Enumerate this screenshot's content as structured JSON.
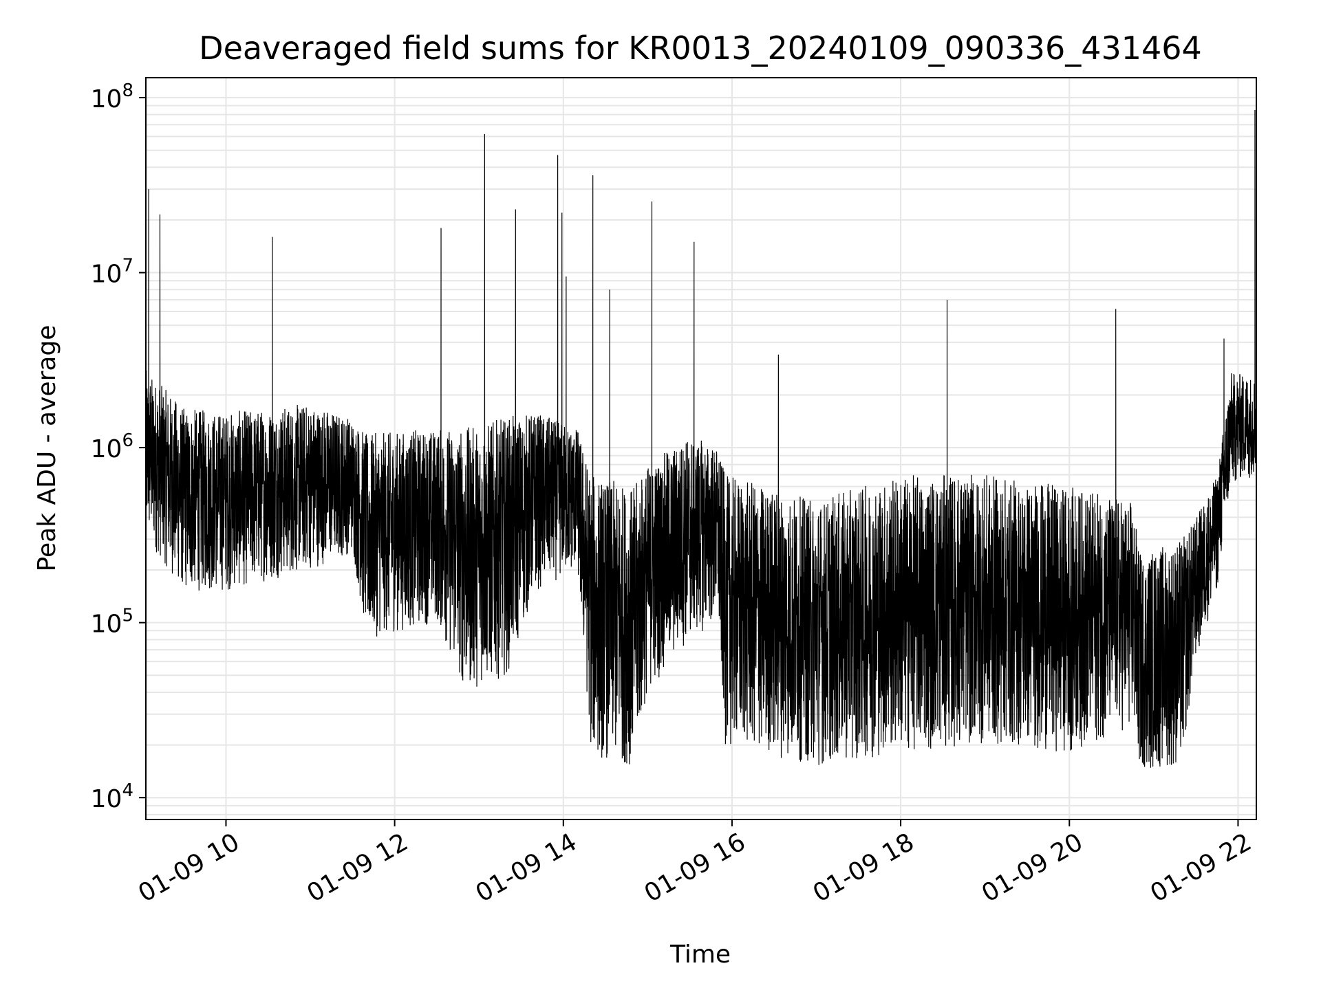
{
  "chart_data": {
    "type": "line",
    "title": "Deaveraged field sums for KR0013_20240109_090336_431464",
    "xlabel": "Time",
    "ylabel": "Peak ADU - average",
    "y_scale": "log",
    "ylim": [
      7500,
      130000000
    ],
    "xlim": [
      "2024-01-09 09:03",
      "2024-01-09 22:13"
    ],
    "grid": true,
    "line_color": "#000000",
    "grid_color": "#e6e6e6",
    "x_ticks": [
      {
        "value": "2024-01-09 10:00",
        "label": "01-09 10"
      },
      {
        "value": "2024-01-09 12:00",
        "label": "01-09 12"
      },
      {
        "value": "2024-01-09 14:00",
        "label": "01-09 14"
      },
      {
        "value": "2024-01-09 16:00",
        "label": "01-09 16"
      },
      {
        "value": "2024-01-09 18:00",
        "label": "01-09 18"
      },
      {
        "value": "2024-01-09 20:00",
        "label": "01-09 20"
      },
      {
        "value": "2024-01-09 22:00",
        "label": "01-09 22"
      }
    ],
    "y_ticks": [
      {
        "value": 10000,
        "base": "10",
        "exp": "4"
      },
      {
        "value": 100000,
        "base": "10",
        "exp": "5"
      },
      {
        "value": 1000000,
        "base": "10",
        "exp": "6"
      },
      {
        "value": 10000000,
        "base": "10",
        "exp": "7"
      },
      {
        "value": 100000000,
        "base": "10",
        "exp": "8"
      }
    ],
    "baseline_envelope": [
      {
        "t": "2024-01-09 09:03",
        "low": 300000,
        "high": 2800000
      },
      {
        "t": "2024-01-09 09:30",
        "low": 150000,
        "high": 1700000
      },
      {
        "t": "2024-01-09 10:00",
        "low": 150000,
        "high": 1600000
      },
      {
        "t": "2024-01-09 11:00",
        "low": 200000,
        "high": 1800000
      },
      {
        "t": "2024-01-09 11:30",
        "low": 250000,
        "high": 1500000
      },
      {
        "t": "2024-01-09 11:40",
        "low": 80000,
        "high": 1200000
      },
      {
        "t": "2024-01-09 12:30",
        "low": 100000,
        "high": 1300000
      },
      {
        "t": "2024-01-09 12:50",
        "low": 40000,
        "high": 1300000
      },
      {
        "t": "2024-01-09 13:20",
        "low": 50000,
        "high": 1500000
      },
      {
        "t": "2024-01-09 13:40",
        "low": 150000,
        "high": 1600000
      },
      {
        "t": "2024-01-09 14:10",
        "low": 200000,
        "high": 1300000
      },
      {
        "t": "2024-01-09 14:20",
        "low": 17000,
        "high": 700000
      },
      {
        "t": "2024-01-09 14:50",
        "low": 15000,
        "high": 600000
      },
      {
        "t": "2024-01-09 15:00",
        "low": 40000,
        "high": 800000
      },
      {
        "t": "2024-01-09 15:30",
        "low": 80000,
        "high": 1200000
      },
      {
        "t": "2024-01-09 15:50",
        "low": 100000,
        "high": 1000000
      },
      {
        "t": "2024-01-09 15:55",
        "low": 20000,
        "high": 700000
      },
      {
        "t": "2024-01-09 17:00",
        "low": 15000,
        "high": 500000
      },
      {
        "t": "2024-01-09 18:00",
        "low": 18000,
        "high": 700000
      },
      {
        "t": "2024-01-09 19:00",
        "low": 20000,
        "high": 700000
      },
      {
        "t": "2024-01-09 20:00",
        "low": 18000,
        "high": 600000
      },
      {
        "t": "2024-01-09 20:45",
        "low": 25000,
        "high": 500000
      },
      {
        "t": "2024-01-09 20:50",
        "low": 14000,
        "high": 250000
      },
      {
        "t": "2024-01-09 21:20",
        "low": 15000,
        "high": 300000
      },
      {
        "t": "2024-01-09 21:30",
        "low": 60000,
        "high": 400000
      },
      {
        "t": "2024-01-09 21:45",
        "low": 150000,
        "high": 700000
      },
      {
        "t": "2024-01-09 21:55",
        "low": 600000,
        "high": 2700000
      },
      {
        "t": "2024-01-09 22:13",
        "low": 700000,
        "high": 2600000
      }
    ],
    "spikes": [
      {
        "t": "2024-01-09 09:05",
        "value": 30000000
      },
      {
        "t": "2024-01-09 09:13",
        "value": 21500000
      },
      {
        "t": "2024-01-09 10:33",
        "value": 16000000
      },
      {
        "t": "2024-01-09 12:33",
        "value": 18000000
      },
      {
        "t": "2024-01-09 13:04",
        "value": 62000000
      },
      {
        "t": "2024-01-09 13:26",
        "value": 23000000
      },
      {
        "t": "2024-01-09 13:56",
        "value": 47000000
      },
      {
        "t": "2024-01-09 13:59",
        "value": 22000000
      },
      {
        "t": "2024-01-09 14:02",
        "value": 9500000
      },
      {
        "t": "2024-01-09 14:21",
        "value": 36000000
      },
      {
        "t": "2024-01-09 14:33",
        "value": 8000000
      },
      {
        "t": "2024-01-09 15:03",
        "value": 25500000
      },
      {
        "t": "2024-01-09 15:33",
        "value": 15000000
      },
      {
        "t": "2024-01-09 16:33",
        "value": 3400000
      },
      {
        "t": "2024-01-09 18:33",
        "value": 7000000
      },
      {
        "t": "2024-01-09 20:33",
        "value": 6200000
      },
      {
        "t": "2024-01-09 21:50",
        "value": 4200000
      },
      {
        "t": "2024-01-09 22:12",
        "value": 85000000
      }
    ]
  }
}
